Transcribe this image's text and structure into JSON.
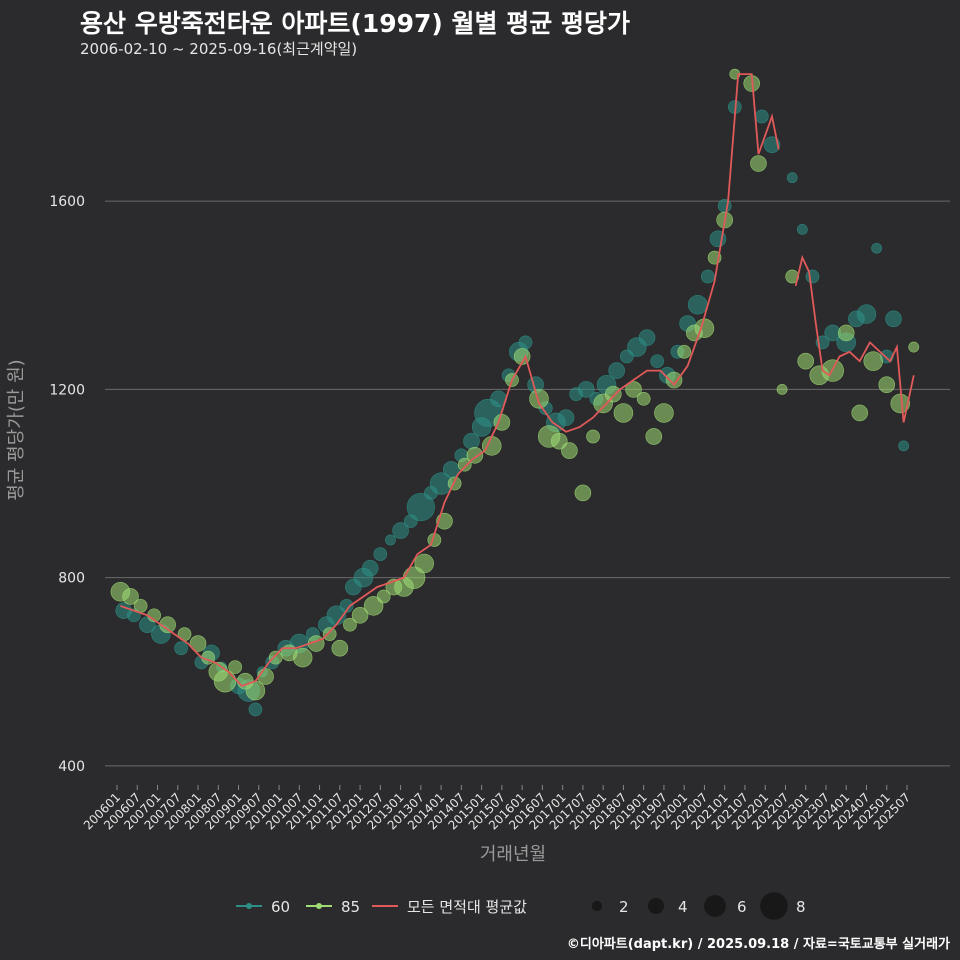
{
  "title": "용산 우방죽전타운 아파트(1997) 월별 평균 평당가",
  "subtitle": "2006-02-10 ~ 2025-09-16(최근계약일)",
  "footer": "©디아파트(dapt.kr) / 2025.09.18 / 자료=국토교통부 실거래가",
  "colors": {
    "background": "#2b2a2c",
    "grid": "#6a6a6a",
    "size60": "#2e8f86",
    "size85": "#9fdc74",
    "avg_line": "#e05a5a",
    "text": "#e6e6e6",
    "axis_title": "#9a9a9a"
  },
  "chart_data": {
    "type": "scatter",
    "title": "용산 우방죽전타운 아파트(1997) 월별 평균 평당가",
    "xlabel": "거래년월",
    "ylabel": "평균 평당가(만 원)",
    "ylim": [
      370,
      1900
    ],
    "yticks": [
      400,
      800,
      1200,
      1600
    ],
    "xticks": [
      "200601",
      "200607",
      "200701",
      "200707",
      "200801",
      "200807",
      "200901",
      "200907",
      "201001",
      "201007",
      "201101",
      "201107",
      "201201",
      "201207",
      "201301",
      "201307",
      "201401",
      "201407",
      "201501",
      "201507",
      "201601",
      "201607",
      "201701",
      "201707",
      "201801",
      "201807",
      "201901",
      "201907",
      "202001",
      "202007",
      "202101",
      "202107",
      "202201",
      "202207",
      "202301",
      "202307",
      "202401",
      "202407",
      "202501",
      "202507"
    ],
    "legend": {
      "series_labels": [
        "60",
        "85",
        "모든 면적대 평균값"
      ],
      "size_labels": [
        "2",
        "4",
        "6",
        "8"
      ],
      "size_values": [
        2,
        4,
        6,
        8
      ]
    },
    "series": [
      {
        "name": "60",
        "points": [
          [
            "2006-03",
            730,
            4
          ],
          [
            "2006-06",
            720,
            3
          ],
          [
            "2006-10",
            700,
            4
          ],
          [
            "2007-02",
            680,
            5
          ],
          [
            "2007-08",
            650,
            3
          ],
          [
            "2008-02",
            620,
            3
          ],
          [
            "2008-05",
            640,
            4
          ],
          [
            "2008-08",
            610,
            2
          ],
          [
            "2009-01",
            570,
            4
          ],
          [
            "2009-04",
            560,
            6
          ],
          [
            "2009-06",
            520,
            3
          ],
          [
            "2009-08",
            600,
            2
          ],
          [
            "2009-11",
            620,
            3
          ],
          [
            "2010-03",
            650,
            4
          ],
          [
            "2010-07",
            660,
            5
          ],
          [
            "2010-11",
            680,
            3
          ],
          [
            "2011-03",
            700,
            4
          ],
          [
            "2011-06",
            720,
            5
          ],
          [
            "2011-09",
            740,
            3
          ],
          [
            "2011-11",
            780,
            4
          ],
          [
            "2012-02",
            800,
            5
          ],
          [
            "2012-04",
            820,
            4
          ],
          [
            "2012-07",
            850,
            3
          ],
          [
            "2012-10",
            880,
            2
          ],
          [
            "2013-01",
            900,
            4
          ],
          [
            "2013-04",
            920,
            3
          ],
          [
            "2013-07",
            950,
            8
          ],
          [
            "2013-10",
            980,
            3
          ],
          [
            "2014-01",
            1000,
            6
          ],
          [
            "2014-04",
            1030,
            4
          ],
          [
            "2014-07",
            1060,
            3
          ],
          [
            "2014-10",
            1090,
            4
          ],
          [
            "2015-01",
            1120,
            5
          ],
          [
            "2015-03",
            1150,
            8
          ],
          [
            "2015-06",
            1180,
            4
          ],
          [
            "2015-09",
            1230,
            3
          ],
          [
            "2015-12",
            1280,
            5
          ],
          [
            "2016-02",
            1300,
            3
          ],
          [
            "2016-05",
            1210,
            4
          ],
          [
            "2016-08",
            1160,
            3
          ],
          [
            "2016-11",
            1130,
            5
          ],
          [
            "2017-02",
            1140,
            4
          ],
          [
            "2017-05",
            1190,
            3
          ],
          [
            "2017-08",
            1200,
            4
          ],
          [
            "2017-11",
            1180,
            3
          ],
          [
            "2018-02",
            1210,
            5
          ],
          [
            "2018-05",
            1240,
            4
          ],
          [
            "2018-08",
            1270,
            3
          ],
          [
            "2018-11",
            1290,
            5
          ],
          [
            "2019-02",
            1310,
            4
          ],
          [
            "2019-05",
            1260,
            3
          ],
          [
            "2019-08",
            1230,
            4
          ],
          [
            "2019-11",
            1280,
            3
          ],
          [
            "2020-02",
            1340,
            4
          ],
          [
            "2020-05",
            1380,
            5
          ],
          [
            "2020-08",
            1440,
            3
          ],
          [
            "2020-11",
            1520,
            4
          ],
          [
            "2021-01",
            1590,
            3
          ],
          [
            "2021-04",
            1800,
            3
          ],
          [
            "2021-12",
            1780,
            3
          ],
          [
            "2022-03",
            1720,
            4
          ],
          [
            "2022-09",
            1650,
            2
          ],
          [
            "2022-12",
            1540,
            2
          ],
          [
            "2023-03",
            1440,
            3
          ],
          [
            "2023-06",
            1300,
            3
          ],
          [
            "2023-09",
            1320,
            4
          ],
          [
            "2024-01",
            1300,
            5
          ],
          [
            "2024-04",
            1350,
            4
          ],
          [
            "2024-07",
            1360,
            5
          ],
          [
            "2024-10",
            1500,
            2
          ],
          [
            "2025-01",
            1270,
            3
          ],
          [
            "2025-03",
            1350,
            4
          ],
          [
            "2025-06",
            1080,
            2
          ]
        ]
      },
      {
        "name": "85",
        "points": [
          [
            "2006-02",
            770,
            5
          ],
          [
            "2006-05",
            760,
            4
          ],
          [
            "2006-08",
            740,
            3
          ],
          [
            "2006-12",
            720,
            3
          ],
          [
            "2007-04",
            700,
            4
          ],
          [
            "2007-09",
            680,
            3
          ],
          [
            "2008-01",
            660,
            4
          ],
          [
            "2008-04",
            630,
            3
          ],
          [
            "2008-07",
            600,
            5
          ],
          [
            "2008-09",
            580,
            6
          ],
          [
            "2008-12",
            610,
            3
          ],
          [
            "2009-03",
            580,
            4
          ],
          [
            "2009-06",
            560,
            5
          ],
          [
            "2009-09",
            590,
            4
          ],
          [
            "2009-12",
            630,
            3
          ],
          [
            "2010-04",
            640,
            4
          ],
          [
            "2010-08",
            630,
            5
          ],
          [
            "2010-12",
            660,
            4
          ],
          [
            "2011-04",
            680,
            3
          ],
          [
            "2011-07",
            650,
            4
          ],
          [
            "2011-10",
            700,
            3
          ],
          [
            "2012-01",
            720,
            4
          ],
          [
            "2012-05",
            740,
            5
          ],
          [
            "2012-08",
            760,
            3
          ],
          [
            "2012-11",
            780,
            4
          ],
          [
            "2013-02",
            780,
            5
          ],
          [
            "2013-05",
            800,
            6
          ],
          [
            "2013-08",
            830,
            5
          ],
          [
            "2013-11",
            880,
            3
          ],
          [
            "2014-02",
            920,
            4
          ],
          [
            "2014-05",
            1000,
            3
          ],
          [
            "2014-08",
            1040,
            3
          ],
          [
            "2014-11",
            1060,
            4
          ],
          [
            "2015-04",
            1080,
            5
          ],
          [
            "2015-07",
            1130,
            4
          ],
          [
            "2015-10",
            1220,
            3
          ],
          [
            "2016-01",
            1270,
            4
          ],
          [
            "2016-06",
            1180,
            5
          ],
          [
            "2016-09",
            1100,
            6
          ],
          [
            "2016-12",
            1090,
            4
          ],
          [
            "2017-03",
            1070,
            4
          ],
          [
            "2017-07",
            980,
            4
          ],
          [
            "2017-10",
            1100,
            3
          ],
          [
            "2018-01",
            1170,
            5
          ],
          [
            "2018-04",
            1190,
            4
          ],
          [
            "2018-07",
            1150,
            5
          ],
          [
            "2018-10",
            1200,
            4
          ],
          [
            "2019-01",
            1180,
            3
          ],
          [
            "2019-04",
            1100,
            4
          ],
          [
            "2019-07",
            1150,
            5
          ],
          [
            "2019-10",
            1220,
            4
          ],
          [
            "2020-01",
            1280,
            3
          ],
          [
            "2020-04",
            1320,
            4
          ],
          [
            "2020-07",
            1330,
            5
          ],
          [
            "2020-10",
            1480,
            3
          ],
          [
            "2021-01",
            1560,
            4
          ],
          [
            "2021-04",
            1870,
            2
          ],
          [
            "2021-09",
            1850,
            4
          ],
          [
            "2021-11",
            1680,
            4
          ],
          [
            "2022-06",
            1200,
            2
          ],
          [
            "2022-09",
            1440,
            3
          ],
          [
            "2023-01",
            1260,
            4
          ],
          [
            "2023-05",
            1230,
            5
          ],
          [
            "2023-09",
            1240,
            6
          ],
          [
            "2024-01",
            1320,
            4
          ],
          [
            "2024-05",
            1150,
            4
          ],
          [
            "2024-09",
            1260,
            5
          ],
          [
            "2025-01",
            1210,
            4
          ],
          [
            "2025-05",
            1170,
            5
          ],
          [
            "2025-09",
            1290,
            2
          ]
        ]
      }
    ],
    "avg_segments": [
      [
        [
          "2006-02",
          740
        ],
        [
          "2006-06",
          730
        ],
        [
          "2006-10",
          720
        ],
        [
          "2007-02",
          700
        ],
        [
          "2007-06",
          680
        ],
        [
          "2007-10",
          660
        ],
        [
          "2008-02",
          630
        ],
        [
          "2008-06",
          620
        ],
        [
          "2008-10",
          600
        ],
        [
          "2009-02",
          570
        ],
        [
          "2009-06",
          580
        ],
        [
          "2009-10",
          620
        ],
        [
          "2010-02",
          650
        ],
        [
          "2010-06",
          650
        ],
        [
          "2010-10",
          660
        ],
        [
          "2011-02",
          670
        ],
        [
          "2011-06",
          700
        ],
        [
          "2011-10",
          740
        ],
        [
          "2012-02",
          760
        ],
        [
          "2012-06",
          780
        ],
        [
          "2012-10",
          790
        ],
        [
          "2013-02",
          800
        ],
        [
          "2013-06",
          850
        ],
        [
          "2013-10",
          870
        ],
        [
          "2014-02",
          960
        ],
        [
          "2014-06",
          1020
        ],
        [
          "2014-10",
          1050
        ],
        [
          "2015-02",
          1070
        ],
        [
          "2015-06",
          1130
        ],
        [
          "2015-10",
          1220
        ],
        [
          "2016-02",
          1270
        ],
        [
          "2016-06",
          1170
        ],
        [
          "2016-10",
          1130
        ],
        [
          "2017-02",
          1110
        ],
        [
          "2017-06",
          1120
        ],
        [
          "2017-10",
          1140
        ],
        [
          "2018-02",
          1170
        ],
        [
          "2018-06",
          1200
        ],
        [
          "2018-10",
          1220
        ],
        [
          "2019-02",
          1240
        ],
        [
          "2019-06",
          1240
        ],
        [
          "2019-10",
          1210
        ],
        [
          "2020-02",
          1250
        ],
        [
          "2020-06",
          1330
        ],
        [
          "2020-10",
          1430
        ],
        [
          "2021-02",
          1600
        ],
        [
          "2021-05",
          1870
        ],
        [
          "2021-09",
          1870
        ],
        [
          "2021-11",
          1700
        ],
        [
          "2022-01",
          1740
        ],
        [
          "2022-03",
          1780
        ],
        [
          "2022-05",
          1710
        ]
      ],
      [
        [
          "2022-10",
          1420
        ],
        [
          "2022-12",
          1480
        ],
        [
          "2023-02",
          1450
        ],
        [
          "2023-04",
          1340
        ],
        [
          "2023-06",
          1240
        ],
        [
          "2023-08",
          1230
        ],
        [
          "2023-11",
          1270
        ],
        [
          "2024-02",
          1280
        ],
        [
          "2024-05",
          1260
        ],
        [
          "2024-08",
          1300
        ],
        [
          "2024-11",
          1280
        ],
        [
          "2025-02",
          1260
        ],
        [
          "2025-04",
          1290
        ],
        [
          "2025-06",
          1130
        ],
        [
          "2025-09",
          1230
        ]
      ]
    ]
  }
}
